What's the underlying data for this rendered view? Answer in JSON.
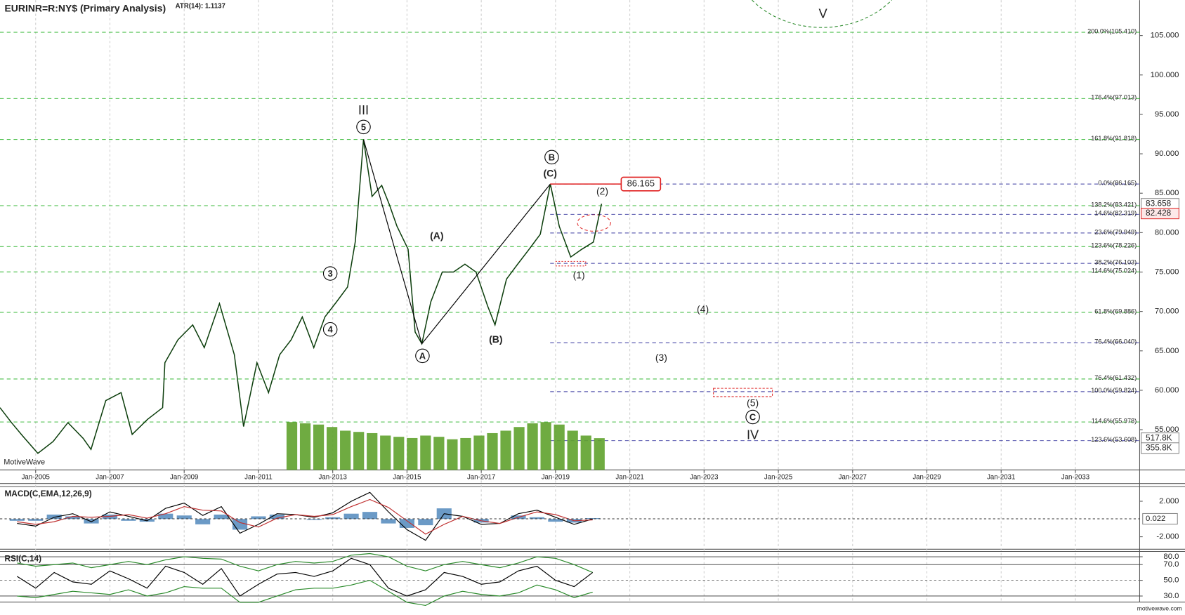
{
  "chart_data": [
    {
      "type": "line",
      "title": "EURINR=R:NY$ (Primary Analysis)",
      "subtitle": "ATR(14): 1.1137",
      "watermark": "MotiveWave",
      "xlim": [
        2004.04,
        2034.73
      ],
      "ylim": [
        49.9,
        109.5
      ],
      "y2lim": [
        0,
        7668
      ],
      "xticks": [
        {
          "value": 2005,
          "label": "Jan-2005"
        },
        {
          "value": 2007,
          "label": "Jan-2007"
        },
        {
          "value": 2009,
          "label": "Jan-2009"
        },
        {
          "value": 2011,
          "label": "Jan-2011"
        },
        {
          "value": 2013,
          "label": "Jan-2013"
        },
        {
          "value": 2015,
          "label": "Jan-2015"
        },
        {
          "value": 2017,
          "label": "Jan-2017"
        },
        {
          "value": 2019,
          "label": "Jan-2019"
        },
        {
          "value": 2021,
          "label": "Jan-2021"
        },
        {
          "value": 2023,
          "label": "Jan-2023"
        },
        {
          "value": 2025,
          "label": "Jan-2025"
        },
        {
          "value": 2027,
          "label": "Jan-2027"
        },
        {
          "value": 2029,
          "label": "Jan-2029"
        },
        {
          "value": 2031,
          "label": "Jan-2031"
        },
        {
          "value": 2033,
          "label": "Jan-2033"
        }
      ],
      "yticks": [
        {
          "value": 55,
          "label": "55.000"
        },
        {
          "value": 60,
          "label": "60.000"
        },
        {
          "value": 65,
          "label": "65.000"
        },
        {
          "value": 70,
          "label": "70.000"
        },
        {
          "value": 75,
          "label": "75.000"
        },
        {
          "value": 80,
          "label": "80.000"
        },
        {
          "value": 85,
          "label": "85.000"
        },
        {
          "value": 90,
          "label": "90.000"
        },
        {
          "value": 95,
          "label": "95.000"
        },
        {
          "value": 100,
          "label": "100.000"
        },
        {
          "value": 105,
          "label": "105.000"
        }
      ],
      "grid": true,
      "series": [
        {
          "color": "#0b3d0b",
          "x": [
            2004.04,
            2004.35,
            2004.65,
            2005.06,
            2005.47,
            2005.87,
            2006.28,
            2006.49,
            2006.89,
            2007.3,
            2007.6,
            2008.01,
            2008.42,
            2008.48,
            2008.83,
            2009.23,
            2009.54,
            2009.95,
            2010.35,
            2010.6,
            2010.96,
            2011.27,
            2011.57,
            2011.88,
            2012.18,
            2012.49,
            2012.79,
            2013.1,
            2013.4,
            2013.61,
            2013.83,
            2014.06,
            2014.32,
            2014.52,
            2014.73,
            2015.03,
            2015.22,
            2015.4,
            2015.64,
            2015.95,
            2016.25,
            2016.56,
            2016.86,
            2017.17,
            2017.37,
            2017.68,
            2017.98,
            2018.29,
            2018.59,
            2018.86,
            2019.1,
            2019.41,
            2019.71,
            2020.02,
            2020.24
          ],
          "values": [
            57.8,
            55.9,
            54.2,
            52.0,
            53.5,
            55.9,
            53.9,
            52.5,
            58.7,
            59.7,
            54.4,
            56.3,
            57.8,
            63.5,
            66.4,
            68.3,
            65.4,
            71.0,
            64.5,
            55.4,
            63.5,
            59.7,
            64.5,
            66.4,
            69.3,
            65.4,
            69.3,
            71.2,
            73.1,
            78.9,
            91.818,
            84.6,
            86.0,
            83.6,
            80.8,
            77.9,
            67.4,
            65.9,
            71.2,
            75.0,
            75.0,
            76.0,
            75.0,
            70.7,
            68.3,
            74.1,
            76.0,
            77.9,
            79.8,
            86.165,
            80.8,
            76.9,
            77.9,
            78.8,
            83.658
          ]
        },
        {
          "color": "#000000",
          "x": [
            2013.83,
            2015.4,
            2018.86
          ],
          "values": [
            91.818,
            65.9,
            86.165
          ]
        },
        {
          "type": "bar",
          "axis": "y2",
          "color": "#5fa22c",
          "x": [
            2011.9,
            2012.26,
            2012.62,
            2012.98,
            2013.34,
            2013.7,
            2014.06,
            2014.42,
            2014.78,
            2015.14,
            2015.5,
            2015.86,
            2016.22,
            2016.58,
            2016.94,
            2017.3,
            2017.66,
            2018.02,
            2018.38,
            2018.74,
            2019.1,
            2019.46,
            2019.82,
            2020.18
          ],
          "values": [
            780,
            760,
            740,
            700,
            640,
            620,
            600,
            560,
            540,
            520,
            560,
            540,
            500,
            520,
            560,
            600,
            640,
            700,
            760,
            780,
            740,
            640,
            560,
            517.8
          ]
        }
      ],
      "levels": [
        {
          "value": 105.41,
          "label": "200.0%(105.410)",
          "color": "#2db52d"
        },
        {
          "value": 97.013,
          "label": "176.4%(97.013)",
          "color": "#2db52d"
        },
        {
          "value": 91.818,
          "label": "161.8%(91.818)",
          "color": "#2db52d"
        },
        {
          "value": 86.165,
          "label": "0.0%(86.165)",
          "color": "#3a3aa0"
        },
        {
          "value": 83.421,
          "label": "138.2%(83.421)",
          "color": "#2db52d"
        },
        {
          "value": 82.319,
          "label": "14.6%(82.319)",
          "color": "#3a3aa0"
        },
        {
          "value": 79.949,
          "label": "23.6%(79.949)",
          "color": "#3a3aa0"
        },
        {
          "value": 78.226,
          "label": "123.6%(78.226)",
          "color": "#2db52d"
        },
        {
          "value": 76.103,
          "label": "38.2%(76.103)",
          "color": "#3a3aa0"
        },
        {
          "value": 75.024,
          "label": "114.6%(75.024)",
          "color": "#2db52d"
        },
        {
          "value": 69.886,
          "label": "61.8%(69.886)",
          "color": "#2db52d"
        },
        {
          "value": 66.04,
          "label": "76.4%(66.040)",
          "color": "#3a3aa0"
        },
        {
          "value": 61.432,
          "label": "76.4%(61.432)",
          "color": "#2db52d"
        },
        {
          "value": 59.824,
          "label": "100.0%(59.824)",
          "color": "#3a3aa0"
        },
        {
          "value": 55.978,
          "label": "114.6%(55.978)",
          "color": "#2db52d"
        },
        {
          "value": 53.608,
          "label": "123.6%(53.608)",
          "color": "#3a3aa0"
        }
      ],
      "target": {
        "value": 86.165,
        "label": "86.165",
        "color": "#e02020"
      },
      "price_markers": [
        {
          "value": 83.658,
          "label": "83.658",
          "color": "#888888"
        },
        {
          "value": 82.428,
          "label": "82.428",
          "color": "#e03030"
        }
      ],
      "y2_markers": [
        {
          "value": 517.8,
          "label": "517.8K"
        },
        {
          "value": 355.8,
          "label": "355.8K"
        }
      ],
      "wave_labels": [
        {
          "text": "III",
          "color": "#2a8a2a"
        },
        {
          "text": "5",
          "circled": true,
          "color": "#000000"
        },
        {
          "text": "3",
          "circled": true,
          "color": "#000000"
        },
        {
          "text": "4",
          "circled": true,
          "color": "#000000"
        },
        {
          "text": "A",
          "circled": true,
          "color": "#000000"
        },
        {
          "text": "(A)",
          "color": "#000000"
        },
        {
          "text": "(B)",
          "color": "#000000"
        },
        {
          "text": "B",
          "circled": true,
          "color": "#000000"
        },
        {
          "text": "(C)",
          "color": "#000000"
        },
        {
          "text": "(2)",
          "color": "#555555"
        },
        {
          "text": "(1)",
          "color": "#555555"
        },
        {
          "text": "(4)",
          "color": "#555555"
        },
        {
          "text": "(3)",
          "color": "#555555"
        },
        {
          "text": "(5)",
          "color": "#555555"
        },
        {
          "text": "C",
          "circled": true,
          "color": "#000000"
        },
        {
          "text": "IV",
          "color": "#2a8a2a"
        },
        {
          "text": "V",
          "color": "#2a8a2a"
        }
      ]
    },
    {
      "type": "line",
      "title": "MACD(C,EMA,12,26,9)",
      "xlim": [
        2004.04,
        2034.73
      ],
      "ylim": [
        -3.4,
        3.66
      ],
      "yticks": [
        {
          "value": 2,
          "label": "2.000"
        },
        {
          "value": -2,
          "label": "-2.000"
        }
      ],
      "last_value": 0.022,
      "series": [
        {
          "type": "bar",
          "color": "#5b8fc0",
          "x": [
            2004.5,
            2005,
            2005.5,
            2006,
            2006.5,
            2007,
            2007.5,
            2008,
            2008.5,
            2009,
            2009.5,
            2010,
            2010.5,
            2011,
            2011.5,
            2012,
            2012.5,
            2013,
            2013.5,
            2014,
            2014.5,
            2015,
            2015.5,
            2016,
            2016.5,
            2017,
            2017.5,
            2018,
            2018.5,
            2019,
            2019.5,
            2020
          ],
          "values": [
            -0.2,
            -0.2,
            0.5,
            0.3,
            -0.5,
            0.5,
            -0.2,
            -0.3,
            0.6,
            0.4,
            -0.6,
            0.5,
            -1.2,
            0.3,
            0.5,
            0.0,
            -0.1,
            0.2,
            0.6,
            0.8,
            -0.5,
            -1.0,
            -0.7,
            1.2,
            0.0,
            -0.4,
            0.0,
            0.4,
            0.2,
            -0.3,
            -0.4,
            0.1
          ]
        },
        {
          "color": "#000000",
          "x": [
            2004.5,
            2005,
            2005.5,
            2006,
            2006.5,
            2007,
            2007.5,
            2008,
            2008.5,
            2009,
            2009.5,
            2010,
            2010.5,
            2011,
            2011.5,
            2012,
            2012.5,
            2013,
            2013.5,
            2014,
            2014.5,
            2015,
            2015.5,
            2016,
            2016.5,
            2017,
            2017.5,
            2018,
            2018.5,
            2019,
            2019.5,
            2020
          ],
          "values": [
            -0.5,
            -0.8,
            0.2,
            0.6,
            -0.3,
            0.8,
            0.3,
            -0.2,
            1.2,
            1.8,
            0.4,
            1.4,
            -1.6,
            -0.6,
            0.6,
            0.5,
            0.2,
            0.7,
            2.0,
            3.0,
            0.8,
            -1.2,
            -2.4,
            0.6,
            0.3,
            -0.6,
            -0.5,
            0.6,
            1.0,
            0.2,
            -0.6,
            0.0
          ]
        },
        {
          "color": "#c03030",
          "x": [
            2004.5,
            2005,
            2005.5,
            2006,
            2006.5,
            2007,
            2007.5,
            2008,
            2008.5,
            2009,
            2009.5,
            2010,
            2010.5,
            2011,
            2011.5,
            2012,
            2012.5,
            2013,
            2013.5,
            2014,
            2014.5,
            2015,
            2015.5,
            2016,
            2016.5,
            2017,
            2017.5,
            2018,
            2018.5,
            2019,
            2019.5,
            2020
          ],
          "values": [
            -0.3,
            -0.6,
            -0.3,
            0.3,
            0.2,
            0.3,
            0.5,
            0.1,
            0.6,
            1.4,
            1.0,
            0.9,
            -0.4,
            -0.9,
            0.1,
            0.5,
            0.3,
            0.5,
            1.4,
            2.2,
            1.3,
            -0.2,
            -1.7,
            -0.6,
            0.3,
            -0.2,
            -0.5,
            0.2,
            0.8,
            0.5,
            -0.2,
            -0.1
          ]
        }
      ]
    },
    {
      "type": "line",
      "title": "RSI(C,14)",
      "xlim": [
        2004.04,
        2034.73
      ],
      "ylim": [
        22.3,
        86.7
      ],
      "yticks": [
        {
          "value": 80,
          "label": "80.0"
        },
        {
          "value": 70,
          "label": "70.0"
        },
        {
          "value": 50,
          "label": "50.0"
        },
        {
          "value": 30,
          "label": "30.0"
        }
      ],
      "grid": true,
      "series": [
        {
          "color": "#2a8a2a",
          "x": [
            2004.5,
            2005,
            2005.5,
            2006,
            2006.5,
            2007,
            2007.5,
            2008,
            2008.5,
            2009,
            2009.5,
            2010,
            2010.5,
            2011,
            2011.5,
            2012,
            2012.5,
            2013,
            2013.5,
            2014,
            2014.5,
            2015,
            2015.5,
            2016,
            2016.5,
            2017,
            2017.5,
            2018,
            2018.5,
            2019,
            2019.5,
            2020
          ],
          "values": [
            72,
            68,
            70,
            72,
            66,
            70,
            74,
            70,
            76,
            80,
            78,
            77,
            68,
            62,
            70,
            74,
            72,
            74,
            82,
            84,
            80,
            68,
            62,
            70,
            74,
            70,
            66,
            72,
            80,
            78,
            70,
            60
          ]
        },
        {
          "color": "#2a8a2a",
          "x": [
            2004.5,
            2005,
            2005.5,
            2006,
            2006.5,
            2007,
            2007.5,
            2008,
            2008.5,
            2009,
            2009.5,
            2010,
            2010.5,
            2011,
            2011.5,
            2012,
            2012.5,
            2013,
            2013.5,
            2014,
            2014.5,
            2015,
            2015.5,
            2016,
            2016.5,
            2017,
            2017.5,
            2018,
            2018.5,
            2019,
            2019.5,
            2020
          ],
          "values": [
            30,
            28,
            32,
            36,
            34,
            32,
            38,
            30,
            34,
            42,
            40,
            40,
            22,
            22,
            30,
            38,
            40,
            40,
            44,
            50,
            36,
            22,
            18,
            30,
            36,
            32,
            30,
            34,
            44,
            38,
            28,
            35
          ]
        },
        {
          "color": "#000000",
          "x": [
            2004.5,
            2005,
            2005.5,
            2006,
            2006.5,
            2007,
            2007.5,
            2008,
            2008.5,
            2009,
            2009.5,
            2010,
            2010.5,
            2011,
            2011.5,
            2012,
            2012.5,
            2013,
            2013.5,
            2014,
            2014.5,
            2015,
            2015.5,
            2016,
            2016.5,
            2017,
            2017.5,
            2018,
            2018.5,
            2019,
            2019.5,
            2020
          ],
          "values": [
            55,
            40,
            60,
            48,
            45,
            62,
            52,
            40,
            68,
            60,
            45,
            65,
            30,
            45,
            58,
            60,
            55,
            62,
            78,
            70,
            40,
            30,
            38,
            60,
            55,
            45,
            48,
            62,
            68,
            50,
            42,
            60
          ]
        }
      ]
    }
  ],
  "footer": "motivewave.com"
}
